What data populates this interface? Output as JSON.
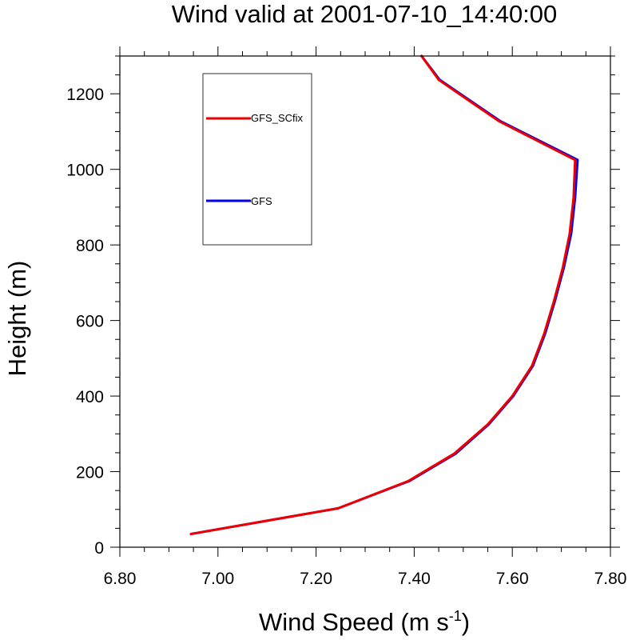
{
  "chart_data": {
    "type": "line",
    "title": "Wind valid at 2001-07-10_14:40:00",
    "xlabel": "Wind Speed (m s",
    "xlabel_superscript": "-1",
    "xlabel_suffix": ")",
    "ylabel": "Height (m)",
    "xlim": [
      6.8,
      7.8
    ],
    "ylim": [
      0,
      1300
    ],
    "xticks": [
      6.8,
      7.0,
      7.2,
      7.4,
      7.6,
      7.8
    ],
    "xtick_labels": [
      "6.80",
      "7.00",
      "7.20",
      "7.40",
      "7.60",
      "7.80"
    ],
    "yticks": [
      0,
      200,
      400,
      600,
      800,
      1000,
      1200
    ],
    "ytick_labels": [
      "0",
      "200",
      "400",
      "600",
      "800",
      "1000",
      "1200"
    ],
    "grid": false,
    "legend_position": "top-left",
    "series": [
      {
        "name": "GFS",
        "color": "#0000ee",
        "points": [
          [
            6.945,
            35
          ],
          [
            7.245,
            103
          ],
          [
            7.39,
            175
          ],
          [
            7.485,
            248
          ],
          [
            7.552,
            325
          ],
          [
            7.602,
            400
          ],
          [
            7.642,
            480
          ],
          [
            7.667,
            565
          ],
          [
            7.687,
            652
          ],
          [
            7.705,
            740
          ],
          [
            7.72,
            830
          ],
          [
            7.728,
            925
          ],
          [
            7.733,
            1025
          ],
          [
            7.575,
            1128
          ],
          [
            7.452,
            1237
          ],
          [
            7.415,
            1300
          ]
        ]
      },
      {
        "name": "GFS_SCfix",
        "color": "#ee0000",
        "points": [
          [
            6.945,
            35
          ],
          [
            7.245,
            103
          ],
          [
            7.388,
            175
          ],
          [
            7.482,
            248
          ],
          [
            7.55,
            325
          ],
          [
            7.6,
            400
          ],
          [
            7.64,
            480
          ],
          [
            7.665,
            565
          ],
          [
            7.685,
            652
          ],
          [
            7.703,
            740
          ],
          [
            7.717,
            830
          ],
          [
            7.725,
            925
          ],
          [
            7.728,
            1025
          ],
          [
            7.572,
            1128
          ],
          [
            7.45,
            1237
          ],
          [
            7.415,
            1300
          ]
        ]
      }
    ]
  }
}
